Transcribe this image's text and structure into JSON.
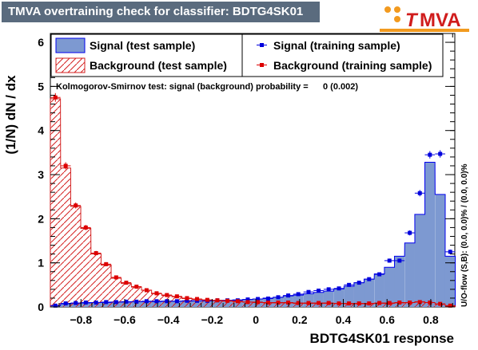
{
  "title": "TMVA overtraining check for classifier: BDTG4SK01",
  "logo": {
    "text": "MVA",
    "initial": "T",
    "colors": {
      "dots": "#f29a1f",
      "text": "#d01c1c"
    }
  },
  "chart_data": {
    "type": "bar",
    "xlabel": "BDTG4SK01 response",
    "ylabel": "(1/N) dN / dx",
    "xlim": [
      -0.94,
      0.91
    ],
    "ylim": [
      0,
      6.2
    ],
    "xticks": [
      -0.8,
      -0.6,
      -0.4,
      -0.2,
      0,
      0.2,
      0.4,
      0.6,
      0.8
    ],
    "xtick_labels": [
      "−0.8",
      "−0.6",
      "−0.4",
      "−0.2",
      "0",
      "0.2",
      "0.4",
      "0.6",
      "0.8"
    ],
    "yticks": [
      0,
      1,
      2,
      3,
      4,
      5,
      6
    ],
    "ytick_labels": [
      "0",
      "1",
      "2",
      "3",
      "4",
      "5",
      "6"
    ],
    "bin_width": 0.0463,
    "bin_centers": [
      -0.917,
      -0.87,
      -0.824,
      -0.778,
      -0.731,
      -0.685,
      -0.639,
      -0.593,
      -0.546,
      -0.5,
      -0.454,
      -0.407,
      -0.361,
      -0.315,
      -0.269,
      -0.222,
      -0.176,
      -0.13,
      -0.083,
      -0.037,
      0.009,
      0.056,
      0.102,
      0.148,
      0.194,
      0.241,
      0.287,
      0.333,
      0.38,
      0.426,
      0.472,
      0.518,
      0.565,
      0.611,
      0.657,
      0.704,
      0.75,
      0.796,
      0.843,
      0.889
    ],
    "series": [
      {
        "name": "Signal (test sample)",
        "style": "filled",
        "color": "#7d99d1",
        "edge": "#0000ee",
        "values": [
          0.03,
          0.07,
          0.08,
          0.09,
          0.1,
          0.1,
          0.11,
          0.11,
          0.12,
          0.12,
          0.12,
          0.13,
          0.13,
          0.13,
          0.14,
          0.14,
          0.14,
          0.15,
          0.16,
          0.17,
          0.18,
          0.2,
          0.22,
          0.25,
          0.27,
          0.3,
          0.33,
          0.36,
          0.41,
          0.47,
          0.55,
          0.63,
          0.75,
          0.9,
          1.15,
          1.45,
          2.1,
          3.28,
          2.55,
          1.15
        ]
      },
      {
        "name": "Background (test sample)",
        "style": "hatched",
        "color": "#d42020",
        "values": [
          4.72,
          3.15,
          2.28,
          1.78,
          1.2,
          0.95,
          0.65,
          0.53,
          0.45,
          0.38,
          0.3,
          0.26,
          0.23,
          0.19,
          0.17,
          0.15,
          0.14,
          0.13,
          0.12,
          0.11,
          0.1,
          0.09,
          0.09,
          0.09,
          0.08,
          0.08,
          0.08,
          0.08,
          0.08,
          0.07,
          0.07,
          0.07,
          0.08,
          0.08,
          0.09,
          0.1,
          0.12,
          0.1,
          0.06,
          0.02
        ]
      },
      {
        "name": "Signal (training sample)",
        "style": "markers",
        "color": "#0000dd",
        "values": [
          0.03,
          0.08,
          0.09,
          0.1,
          0.1,
          0.11,
          0.11,
          0.12,
          0.12,
          0.13,
          0.13,
          0.13,
          0.13,
          0.14,
          0.14,
          0.14,
          0.15,
          0.15,
          0.15,
          0.17,
          0.18,
          0.19,
          0.22,
          0.26,
          0.29,
          0.34,
          0.37,
          0.4,
          0.42,
          0.5,
          0.55,
          0.63,
          0.74,
          1.05,
          1.05,
          1.68,
          2.58,
          3.45,
          3.47,
          1.25
        ]
      },
      {
        "name": "Background (training sample)",
        "style": "markers",
        "color": "#dd0000",
        "values": [
          4.75,
          3.2,
          2.3,
          1.8,
          1.22,
          0.97,
          0.67,
          0.55,
          0.46,
          0.38,
          0.31,
          0.27,
          0.24,
          0.2,
          0.18,
          0.16,
          0.15,
          0.14,
          0.13,
          0.11,
          0.11,
          0.1,
          0.1,
          0.1,
          0.09,
          0.09,
          0.09,
          0.09,
          0.08,
          0.08,
          0.08,
          0.08,
          0.09,
          0.09,
          0.1,
          0.1,
          0.11,
          0.1,
          0.07,
          0.03
        ]
      }
    ],
    "annotation": "Kolmogorov-Smirnov test: signal (background) probability =      0 (0.002)",
    "overflow_label": "U/O-flow (S,B): (0.0, 0.0)% / (0.0, 0.0)%"
  }
}
